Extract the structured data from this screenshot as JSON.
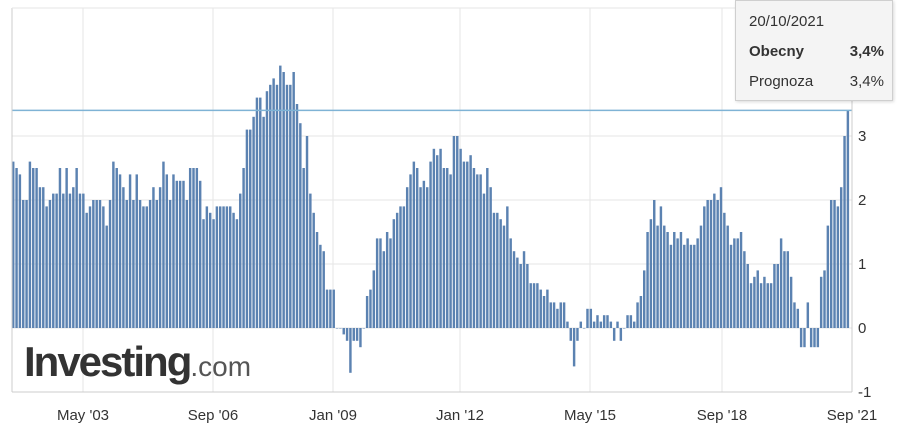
{
  "chart_data": {
    "type": "bar",
    "x_tick_labels": [
      "May '03",
      "Sep '06",
      "Jan '09",
      "Jan '12",
      "May '15",
      "Sep '18",
      "Sep '21"
    ],
    "y_ticks": [
      -1,
      0,
      1,
      2,
      3
    ],
    "y_tick_labels": [
      "-1",
      "0",
      "1",
      "2",
      "3"
    ],
    "ylim": [
      -1,
      4
    ],
    "horizontal_line_value": 3.4,
    "bar_color": "#5b82b1",
    "line_color": "#7fb3d5",
    "grid": true,
    "values": [
      2.6,
      2.5,
      2.4,
      2.0,
      2.0,
      2.6,
      2.5,
      2.5,
      2.2,
      2.2,
      1.9,
      2.0,
      2.1,
      2.1,
      2.5,
      2.1,
      2.5,
      2.1,
      2.2,
      2.5,
      2.1,
      2.1,
      1.8,
      1.9,
      2.0,
      2.0,
      2.0,
      1.9,
      1.6,
      2.0,
      2.6,
      2.5,
      2.4,
      2.2,
      2.0,
      2.4,
      2.0,
      2.4,
      2.0,
      1.9,
      1.9,
      2.0,
      2.2,
      2.0,
      2.2,
      2.6,
      2.4,
      2.0,
      2.4,
      2.3,
      2.3,
      2.3,
      2.0,
      2.5,
      2.5,
      2.5,
      2.3,
      1.7,
      1.9,
      1.8,
      1.7,
      1.9,
      1.9,
      1.9,
      1.9,
      1.9,
      1.8,
      1.7,
      2.1,
      2.5,
      3.1,
      3.1,
      3.3,
      3.6,
      3.6,
      3.3,
      3.7,
      3.8,
      3.9,
      3.8,
      4.1,
      4.0,
      3.8,
      3.8,
      4.0,
      3.5,
      3.2,
      2.5,
      3.0,
      2.1,
      1.8,
      1.5,
      1.3,
      1.2,
      0.6,
      0.6,
      0.6,
      0.0,
      0.0,
      -0.1,
      -0.2,
      -0.7,
      -0.2,
      -0.2,
      -0.3,
      0.0,
      0.5,
      0.6,
      0.9,
      1.4,
      1.4,
      1.2,
      1.5,
      1.4,
      1.7,
      1.8,
      1.9,
      1.9,
      2.2,
      2.4,
      2.6,
      2.5,
      2.2,
      2.3,
      2.2,
      2.6,
      2.8,
      2.7,
      2.8,
      2.5,
      2.5,
      2.4,
      3.0,
      3.0,
      2.8,
      2.6,
      2.6,
      2.7,
      2.5,
      2.4,
      2.4,
      2.1,
      2.5,
      2.2,
      1.8,
      1.8,
      1.7,
      1.6,
      1.9,
      1.4,
      1.2,
      1.1,
      1.0,
      1.2,
      1.0,
      0.7,
      0.7,
      0.7,
      0.6,
      0.5,
      0.6,
      0.4,
      0.4,
      0.3,
      0.4,
      0.4,
      0.1,
      -0.2,
      -0.6,
      -0.2,
      0.1,
      0.0,
      0.3,
      0.3,
      0.1,
      0.2,
      0.1,
      0.2,
      0.2,
      0.1,
      -0.2,
      0.1,
      -0.2,
      0.0,
      0.2,
      0.2,
      0.1,
      0.4,
      0.5,
      0.9,
      1.5,
      1.7,
      2.0,
      1.6,
      1.9,
      1.6,
      1.5,
      1.3,
      1.5,
      1.4,
      1.5,
      1.3,
      1.4,
      1.3,
      1.3,
      1.4,
      1.6,
      1.9,
      2.0,
      2.0,
      2.1,
      2.0,
      2.2,
      1.8,
      1.6,
      1.3,
      1.4,
      1.4,
      1.5,
      1.2,
      1.0,
      0.7,
      0.8,
      0.9,
      0.7,
      0.8,
      0.7,
      0.7,
      1.0,
      1.0,
      1.4,
      1.2,
      1.2,
      0.8,
      0.4,
      0.3,
      -0.3,
      -0.3,
      0.4,
      -0.3,
      -0.3,
      -0.3,
      0.8,
      0.9,
      1.6,
      2.0,
      2.0,
      1.9,
      2.2,
      3.0,
      3.4
    ]
  },
  "tooltip": {
    "date": "20/10/2021",
    "rows": [
      {
        "label": "Obecny",
        "value": "3,4%"
      },
      {
        "label": "Prognoza",
        "value": "3,4%"
      }
    ]
  },
  "watermark": {
    "brand": "Investing",
    "tld": ".com"
  }
}
